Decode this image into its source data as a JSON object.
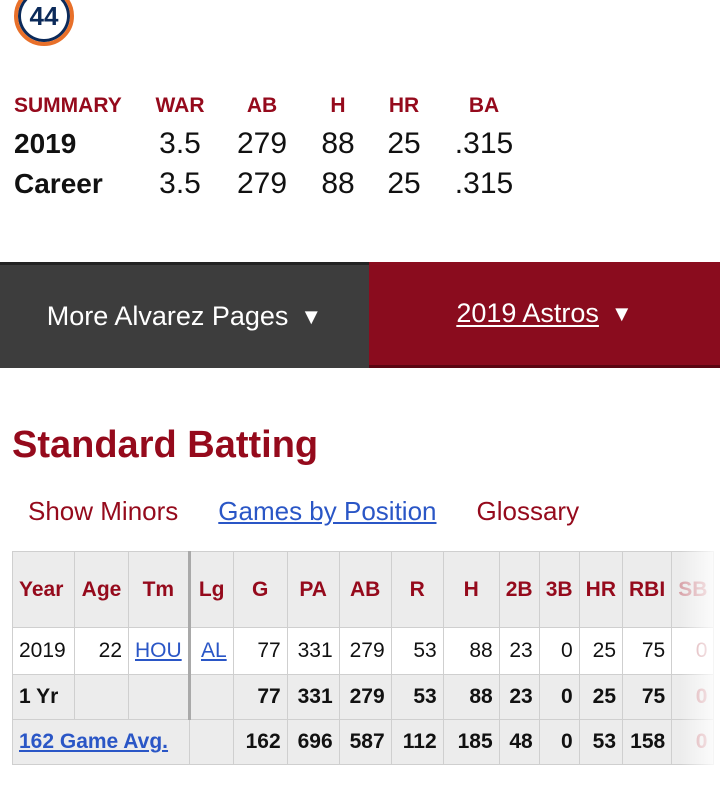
{
  "jersey_number": "44",
  "summary": {
    "headers": [
      "SUMMARY",
      "WAR",
      "AB",
      "H",
      "HR",
      "BA"
    ],
    "rows": [
      {
        "label": "2019",
        "values": [
          "3.5",
          "279",
          "88",
          "25",
          ".315"
        ]
      },
      {
        "label": "Career",
        "values": [
          "3.5",
          "279",
          "88",
          "25",
          ".315"
        ]
      }
    ]
  },
  "nav": {
    "more_pages": "More Alvarez Pages",
    "team_pages": "2019 Astros",
    "caret": "▼"
  },
  "section": {
    "title": "Standard Batting",
    "show_minors": "Show Minors",
    "games_by_position": "Games by Position",
    "glossary": "Glossary"
  },
  "batting": {
    "headers": [
      "Year",
      "Age",
      "Tm",
      "Lg",
      "G",
      "PA",
      "AB",
      "R",
      "H",
      "2B",
      "3B",
      "HR",
      "RBI",
      "SB"
    ],
    "rows": [
      [
        "2019",
        "22",
        "HOU",
        "AL",
        "77",
        "331",
        "279",
        "53",
        "88",
        "23",
        "0",
        "25",
        "75",
        "0"
      ],
      [
        "1 Yr",
        "",
        "",
        "",
        "77",
        "331",
        "279",
        "53",
        "88",
        "23",
        "0",
        "25",
        "75",
        "0"
      ],
      [
        "162 Game Avg.",
        "",
        "",
        "",
        "162",
        "696",
        "587",
        "112",
        "185",
        "48",
        "0",
        "53",
        "158",
        "0"
      ]
    ]
  }
}
